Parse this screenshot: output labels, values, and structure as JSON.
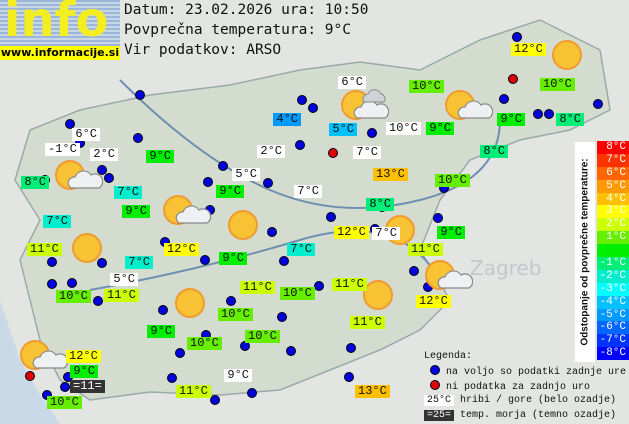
{
  "header": {
    "logo_text": "info",
    "logo_url": "www.informacije.si",
    "date_line": "Datum: 23.02.2026 ura: 10:50",
    "avg_line": "Povprečna temperatura: 9°C",
    "source_line": "Vir podatkov: ARSO"
  },
  "average_temperature": 9,
  "stations": [
    {
      "t": "6°C",
      "type": "mountain"
    },
    {
      "t": "-1°C",
      "type": "mountain"
    },
    {
      "t": "2°C",
      "type": "mountain"
    },
    {
      "t": "8°C",
      "type": "valley"
    },
    {
      "t": "9°C",
      "type": "valley"
    },
    {
      "t": "7°C",
      "type": "valley"
    },
    {
      "t": "9°C",
      "type": "valley"
    },
    {
      "t": "7°C",
      "type": "valley"
    },
    {
      "t": "11°C",
      "type": "valley"
    },
    {
      "t": "12°C",
      "type": "valley"
    },
    {
      "t": "7°C",
      "type": "valley"
    },
    {
      "t": "5°C",
      "type": "mountain"
    },
    {
      "t": "10°C",
      "type": "valley"
    },
    {
      "t": "11°C",
      "type": "valley"
    },
    {
      "t": "9°C",
      "type": "valley"
    },
    {
      "t": "10°C",
      "type": "valley"
    },
    {
      "t": "12°C",
      "type": "valley"
    },
    {
      "t": "9°C",
      "type": "valley"
    },
    {
      "t": "=11=",
      "type": "sea"
    },
    {
      "t": "10°C",
      "type": "valley"
    },
    {
      "t": "11°C",
      "type": "valley"
    },
    {
      "t": "9°C",
      "type": "mountain"
    },
    {
      "t": "10°C",
      "type": "valley"
    },
    {
      "t": "10°C",
      "type": "valley"
    },
    {
      "t": "11°C",
      "type": "valley"
    },
    {
      "t": "10°C",
      "type": "valley"
    },
    {
      "t": "9°C",
      "type": "valley"
    },
    {
      "t": "7°C",
      "type": "valley"
    },
    {
      "t": "12°C",
      "type": "valley"
    },
    {
      "t": "7°C",
      "type": "mountain"
    },
    {
      "t": "11°C",
      "type": "valley"
    },
    {
      "t": "9°C",
      "type": "valley"
    },
    {
      "t": "8°C",
      "type": "valley"
    },
    {
      "t": "10°C",
      "type": "valley"
    },
    {
      "t": "13°C",
      "type": "valley"
    },
    {
      "t": "7°C",
      "type": "mountain"
    },
    {
      "t": "8°C",
      "type": "valley"
    },
    {
      "t": "9°C",
      "type": "valley"
    },
    {
      "t": "10°C",
      "type": "mountain"
    },
    {
      "t": "5°C",
      "type": "valley"
    },
    {
      "t": "4°C",
      "type": "valley"
    },
    {
      "t": "6°C",
      "type": "mountain"
    },
    {
      "t": "10°C",
      "type": "valley"
    },
    {
      "t": "12°C",
      "type": "valley"
    },
    {
      "t": "10°C",
      "type": "valley"
    },
    {
      "t": "9°C",
      "type": "valley"
    },
    {
      "t": "8°C",
      "type": "valley"
    },
    {
      "t": "2°C",
      "type": "mountain"
    },
    {
      "t": "5°C",
      "type": "mountain"
    },
    {
      "t": "9°C",
      "type": "valley"
    },
    {
      "t": "7°C",
      "type": "mountain"
    },
    {
      "t": "11°C",
      "type": "valley"
    },
    {
      "t": "11°C",
      "type": "valley"
    },
    {
      "t": "12°C",
      "type": "valley"
    },
    {
      "t": "13°C",
      "type": "valley"
    }
  ],
  "weather_icons": [
    "sun-cloud",
    "sun-cloud",
    "sun",
    "sun",
    "sun",
    "sun",
    "sun",
    "sun-cloud",
    "sun-clouds",
    "sun-cloud",
    "sun",
    "sun-cloud"
  ],
  "scale": {
    "title": "Odstopanje od povprečne temperature:",
    "steps": [
      {
        "label": "8°C",
        "color": "#ff0000"
      },
      {
        "label": "7°C",
        "color": "#ff3300"
      },
      {
        "label": "6°C",
        "color": "#ff6600"
      },
      {
        "label": "5°C",
        "color": "#ff9900"
      },
      {
        "label": "4°C",
        "color": "#ffc000"
      },
      {
        "label": "3°C",
        "color": "#ffff00"
      },
      {
        "label": "2°C",
        "color": "#ccff00"
      },
      {
        "label": "1°C",
        "color": "#66ee00"
      },
      {
        "label": "",
        "color": "#00ee00"
      },
      {
        "label": "-1°C",
        "color": "#00ee77"
      },
      {
        "label": "-2°C",
        "color": "#00eecc"
      },
      {
        "label": "-3°C",
        "color": "#00ffff"
      },
      {
        "label": "-4°C",
        "color": "#00c0ff"
      },
      {
        "label": "-5°C",
        "color": "#0099ff"
      },
      {
        "label": "-6°C",
        "color": "#0066ff"
      },
      {
        "label": "-7°C",
        "color": "#0033ff"
      },
      {
        "label": "-8°C",
        "color": "#0000ff"
      }
    ]
  },
  "legend": {
    "title": "Legenda:",
    "available": "na voljo so podatki zadnje ure",
    "unavailable": "ni podatka za zadnjo uro",
    "mountain_sample": "25°C",
    "mountain_text": "hribi / gore (belo ozadje)",
    "sea_sample": "=25=",
    "sea_text": "temp. morja (temno ozadje)"
  },
  "map_labels": {
    "zagreb": "Zagreb"
  }
}
